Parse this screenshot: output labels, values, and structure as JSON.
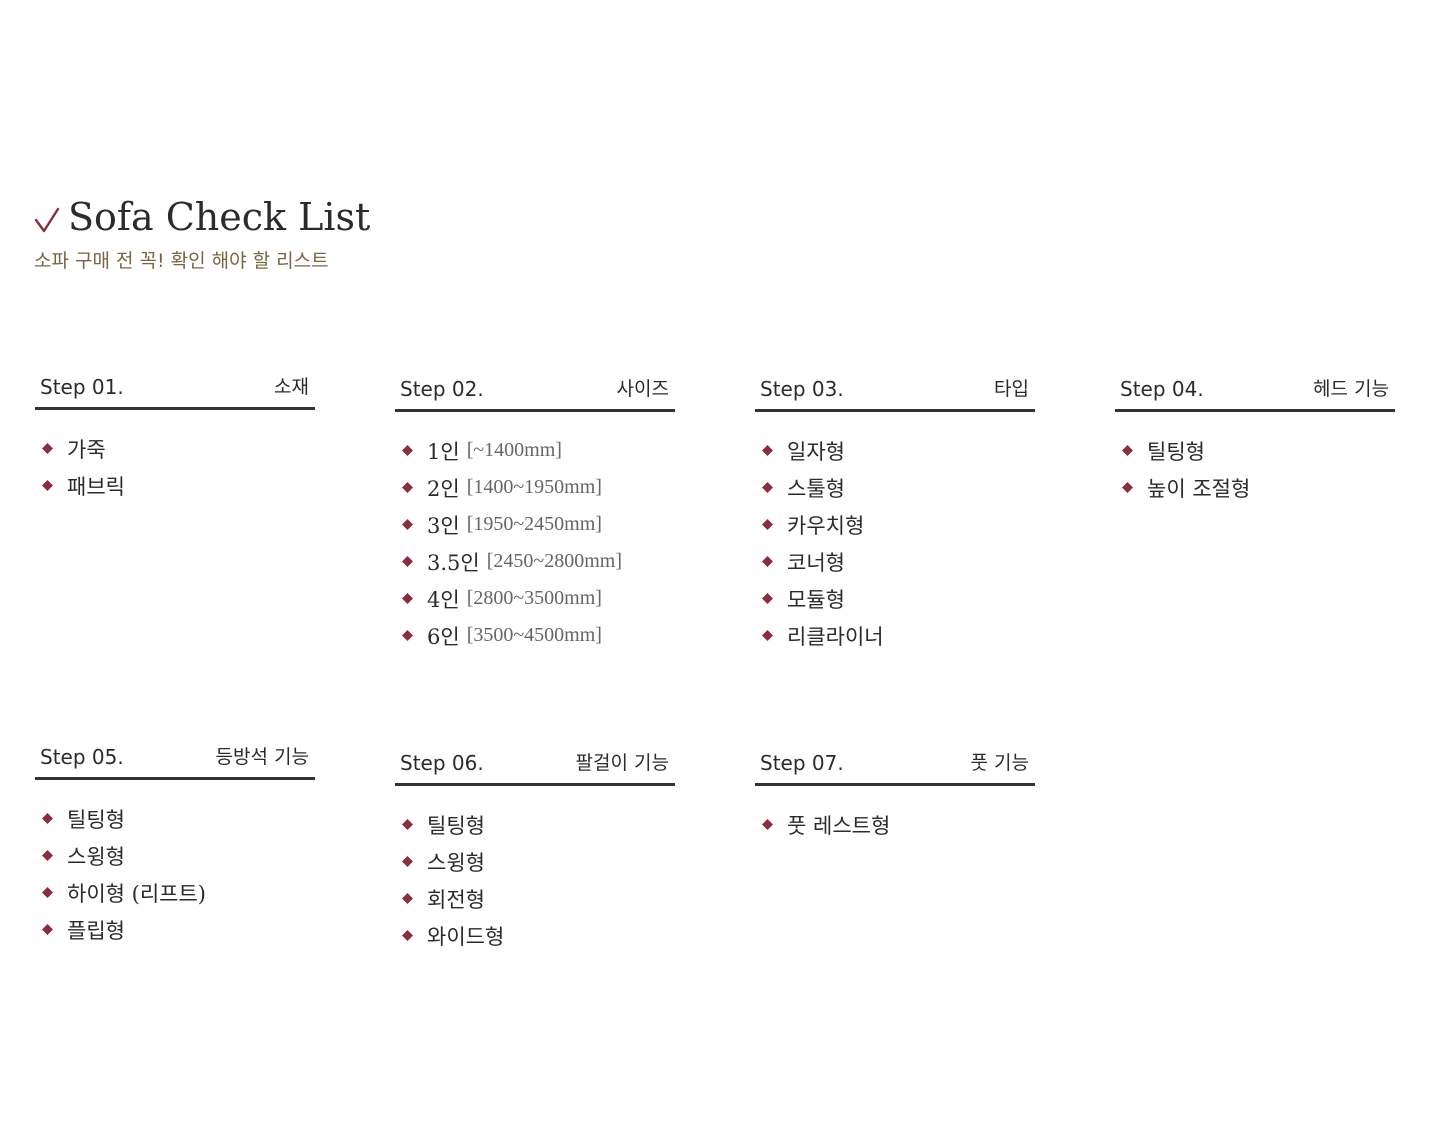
{
  "colors": {
    "accent": "#8b2d3f",
    "subtitle": "#7a6540",
    "rule": "#333333",
    "text": "#2b2b2b",
    "detail": "#666666"
  },
  "header": {
    "icon": "checkmark-icon",
    "title": "Sofa Check List",
    "subtitle": "소파 구매 전 꼭! 확인 해야 할 리스트"
  },
  "bullet_icon": "diamond-icon",
  "steps": [
    {
      "number": "Step 01.",
      "name": "소재",
      "items": [
        {
          "label": "가죽"
        },
        {
          "label": "패브릭"
        }
      ]
    },
    {
      "number": "Step 02.",
      "name": "사이즈",
      "items": [
        {
          "label": "1인",
          "detail": "[~1400mm]"
        },
        {
          "label": "2인",
          "detail": "[1400~1950mm]"
        },
        {
          "label": "3인",
          "detail": "[1950~2450mm]"
        },
        {
          "label": "3.5인",
          "detail": "[2450~2800mm]"
        },
        {
          "label": "4인",
          "detail": "[2800~3500mm]"
        },
        {
          "label": "6인",
          "detail": "[3500~4500mm]"
        }
      ]
    },
    {
      "number": "Step 03.",
      "name": "타입",
      "items": [
        {
          "label": "일자형"
        },
        {
          "label": "스툴형"
        },
        {
          "label": "카우치형"
        },
        {
          "label": "코너형"
        },
        {
          "label": "모듈형"
        },
        {
          "label": "리클라이너"
        }
      ]
    },
    {
      "number": "Step 04.",
      "name": "헤드 기능",
      "items": [
        {
          "label": "틸팅형"
        },
        {
          "label": "높이 조절형"
        }
      ]
    },
    {
      "number": "Step 05.",
      "name": "등방석 기능",
      "items": [
        {
          "label": "틸팅형"
        },
        {
          "label": "스윙형"
        },
        {
          "label": "하이형 (리프트)"
        },
        {
          "label": "플립형"
        }
      ]
    },
    {
      "number": "Step 06.",
      "name": "팔걸이 기능",
      "items": [
        {
          "label": "틸팅형"
        },
        {
          "label": "스윙형"
        },
        {
          "label": "회전형"
        },
        {
          "label": "와이드형"
        }
      ]
    },
    {
      "number": "Step 07.",
      "name": "풋 기능",
      "items": [
        {
          "label": "풋 레스트형"
        }
      ]
    }
  ]
}
